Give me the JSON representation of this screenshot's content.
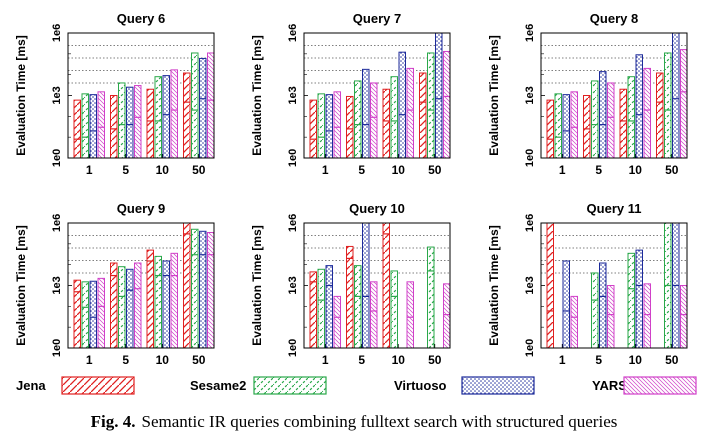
{
  "figure": {
    "caption_label": "Fig. 4.",
    "caption_text": "Semantic IR queries combining fulltext search with structured queries"
  },
  "styles": {
    "Jena": {
      "color": "#e02020",
      "pattern": "diag-up"
    },
    "Sesame2": {
      "color": "#2aa84a",
      "pattern": "diag-up-dashed"
    },
    "Virtuoso": {
      "color": "#1c2a9a",
      "pattern": "dots"
    },
    "YARS": {
      "color": "#d040c8",
      "pattern": "diag-down-fine"
    }
  },
  "chart_data": [
    {
      "type": "bar",
      "title": "Query 6",
      "ylabel": "Evaluation Time [ms]",
      "yscale": "log",
      "ylim": [
        1,
        1000000
      ],
      "yticks": [
        "1e0",
        "1e3",
        "1e6"
      ],
      "categories": [
        "1",
        "5",
        "10",
        "50"
      ],
      "series": [
        {
          "name": "Jena",
          "values": [
            600,
            1000,
            2000,
            12000
          ],
          "inner": [
            8,
            25,
            60,
            480
          ]
        },
        {
          "name": "Sesame2",
          "values": [
            1200,
            4000,
            8000,
            110000
          ],
          "inner": [
            10,
            40,
            60,
            200
          ]
        },
        {
          "name": "Virtuoso",
          "values": [
            1100,
            2500,
            9000,
            60000
          ],
          "inner": [
            20,
            40,
            120,
            700
          ]
        },
        {
          "name": "YARS",
          "values": [
            1500,
            3000,
            17000,
            110000
          ],
          "inner": [
            30,
            90,
            200,
            600
          ]
        }
      ]
    },
    {
      "type": "bar",
      "title": "Query 7",
      "ylabel": "Evaluation Time [ms]",
      "yscale": "log",
      "ylim": [
        1,
        1000000
      ],
      "yticks": [
        "1e0",
        "1e3",
        "1e6"
      ],
      "categories": [
        "1",
        "5",
        "10",
        "50"
      ],
      "series": [
        {
          "name": "Jena",
          "values": [
            600,
            900,
            2000,
            12000
          ],
          "inner": [
            8,
            25,
            60,
            480
          ]
        },
        {
          "name": "Sesame2",
          "values": [
            1200,
            5000,
            8000,
            110000
          ],
          "inner": [
            10,
            40,
            60,
            200
          ]
        },
        {
          "name": "Virtuoso",
          "values": [
            1100,
            18000,
            120000,
            1000000
          ],
          "inner": [
            20,
            40,
            120,
            700
          ]
        },
        {
          "name": "YARS",
          "values": [
            1500,
            4000,
            20000,
            130000
          ],
          "inner": [
            30,
            90,
            200,
            900
          ]
        }
      ]
    },
    {
      "type": "bar",
      "title": "Query 8",
      "ylabel": "Evaluation Time [ms]",
      "yscale": "log",
      "ylim": [
        1,
        1000000
      ],
      "yticks": [
        "1e0",
        "1e3",
        "1e6"
      ],
      "categories": [
        "1",
        "5",
        "10",
        "50"
      ],
      "series": [
        {
          "name": "Jena",
          "values": [
            600,
            1000,
            2000,
            12000
          ],
          "inner": [
            8,
            25,
            60,
            480
          ]
        },
        {
          "name": "Sesame2",
          "values": [
            1200,
            5000,
            8000,
            110000
          ],
          "inner": [
            10,
            40,
            60,
            200
          ]
        },
        {
          "name": "Virtuoso",
          "values": [
            1100,
            14000,
            90000,
            1000000
          ],
          "inner": [
            20,
            40,
            120,
            700
          ]
        },
        {
          "name": "YARS",
          "values": [
            1500,
            4000,
            20000,
            160000
          ],
          "inner": [
            30,
            90,
            200,
            1500
          ]
        }
      ]
    },
    {
      "type": "bar",
      "title": "Query 9",
      "ylabel": "Evaluation Time [ms]",
      "yscale": "log",
      "ylim": [
        1,
        1000000
      ],
      "yticks": [
        "1e0",
        "1e3",
        "1e6"
      ],
      "categories": [
        "1",
        "5",
        "10",
        "50"
      ],
      "series": [
        {
          "name": "Jena",
          "values": [
            1800,
            12000,
            50000,
            1000000
          ],
          "inner": [
            500,
            3000,
            15000,
            300000
          ]
        },
        {
          "name": "Sesame2",
          "values": [
            1500,
            8000,
            25000,
            500000
          ],
          "inner": [
            90,
            300,
            3000,
            30000
          ]
        },
        {
          "name": "Virtuoso",
          "values": [
            1600,
            6000,
            15000,
            400000
          ],
          "inner": [
            30,
            600,
            3000,
            30000
          ]
        },
        {
          "name": "YARS",
          "values": [
            2200,
            12000,
            35000,
            350000
          ],
          "inner": [
            100,
            700,
            3000,
            30000
          ]
        }
      ]
    },
    {
      "type": "bar",
      "title": "Query 10",
      "ylabel": "Evaluation Time [ms]",
      "yscale": "log",
      "ylim": [
        1,
        1000000
      ],
      "yticks": [
        "1e0",
        "1e3",
        "1e6"
      ],
      "categories": [
        "1",
        "5",
        "10",
        "50"
      ],
      "series": [
        {
          "name": "Jena",
          "values": [
            4500,
            75000,
            1000000,
            0
          ],
          "inner": [
            1500,
            20000,
            300000,
            0
          ]
        },
        {
          "name": "Sesame2",
          "values": [
            6000,
            9000,
            5000,
            70000
          ],
          "inner": [
            200,
            300,
            300,
            5000
          ]
        },
        {
          "name": "Virtuoso",
          "values": [
            9000,
            1000000,
            0,
            0
          ],
          "inner": [
            1000,
            300,
            0,
            0
          ]
        },
        {
          "name": "YARS",
          "values": [
            300,
            1500,
            1500,
            1200
          ],
          "inner": [
            30,
            60,
            30,
            40
          ]
        }
      ]
    },
    {
      "type": "bar",
      "title": "Query 11",
      "ylabel": "Evaluation Time [ms]",
      "yscale": "log",
      "ylim": [
        1,
        1000000
      ],
      "yticks": [
        "1e0",
        "1e3",
        "1e6"
      ],
      "categories": [
        "1",
        "5",
        "10",
        "50"
      ],
      "series": [
        {
          "name": "Jena",
          "values": [
            1000000,
            0,
            0,
            0
          ],
          "inner": [
            60,
            0,
            0,
            0
          ]
        },
        {
          "name": "Sesame2",
          "values": [
            0,
            4000,
            35000,
            1000000
          ],
          "inner": [
            0,
            200,
            700,
            1000
          ]
        },
        {
          "name": "Virtuoso",
          "values": [
            15000,
            12000,
            50000,
            1000000
          ],
          "inner": [
            60,
            300,
            1000,
            1000
          ]
        },
        {
          "name": "YARS",
          "values": [
            300,
            1000,
            1200,
            1000
          ],
          "inner": [
            30,
            40,
            40,
            40
          ]
        }
      ]
    }
  ],
  "legend": [
    {
      "name": "Jena"
    },
    {
      "name": "Sesame2"
    },
    {
      "name": "Virtuoso"
    },
    {
      "name": "YARS"
    }
  ]
}
